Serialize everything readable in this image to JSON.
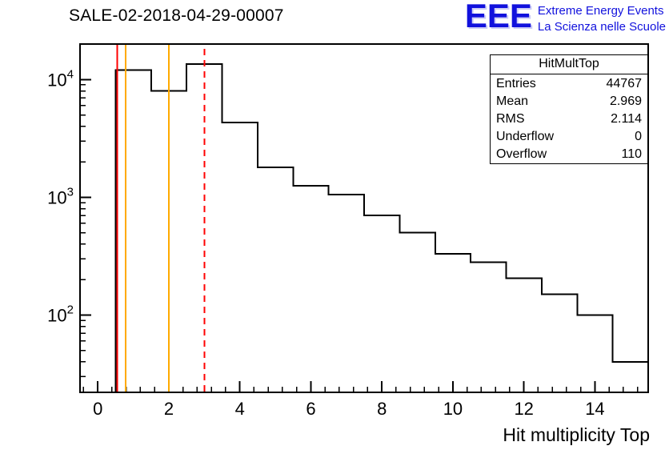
{
  "header": {
    "title": "SALE-02-2018-04-29-00007",
    "logo": {
      "acronym": "EEE",
      "line1": "Extreme Energy Events",
      "line2": "La Scienza nelle Scuole",
      "color": "#1111dd"
    }
  },
  "stats": {
    "title": "HitMultTop",
    "rows": [
      {
        "label": "Entries",
        "value": "44767"
      },
      {
        "label": "Mean",
        "value": "2.969"
      },
      {
        "label": "RMS",
        "value": "2.114"
      },
      {
        "label": "Underflow",
        "value": "0"
      },
      {
        "label": "Overflow",
        "value": "110"
      }
    ]
  },
  "chart_data": {
    "type": "bar",
    "subtype": "step-histogram",
    "title": "SALE-02-2018-04-29-00007",
    "xlabel": "Hit multiplicity Top",
    "ylabel": "",
    "y_scale": "log",
    "grid": false,
    "x_range": [
      -0.5,
      15.5
    ],
    "y_range": [
      22,
      20000
    ],
    "bin_width": 1,
    "bin_centers": [
      1,
      2,
      3,
      4,
      5,
      6,
      7,
      8,
      9,
      10,
      11,
      12,
      13,
      14,
      15
    ],
    "counts": [
      12000,
      8000,
      13500,
      4300,
      1800,
      1250,
      1050,
      700,
      500,
      330,
      280,
      205,
      150,
      100,
      40
    ],
    "x_ticks": [
      0,
      2,
      4,
      6,
      8,
      10,
      12,
      14
    ],
    "y_tick_exponents": [
      2,
      3,
      4
    ],
    "line_color": "#000000",
    "markers": [
      {
        "x": 0.55,
        "color": "#ff0000",
        "style": "solid"
      },
      {
        "x": 0.78,
        "color": "#ffaa00",
        "style": "solid"
      },
      {
        "x": 2.0,
        "color": "#ffaa00",
        "style": "solid"
      },
      {
        "x": 3.0,
        "color": "#ff0000",
        "style": "dashed"
      }
    ]
  }
}
